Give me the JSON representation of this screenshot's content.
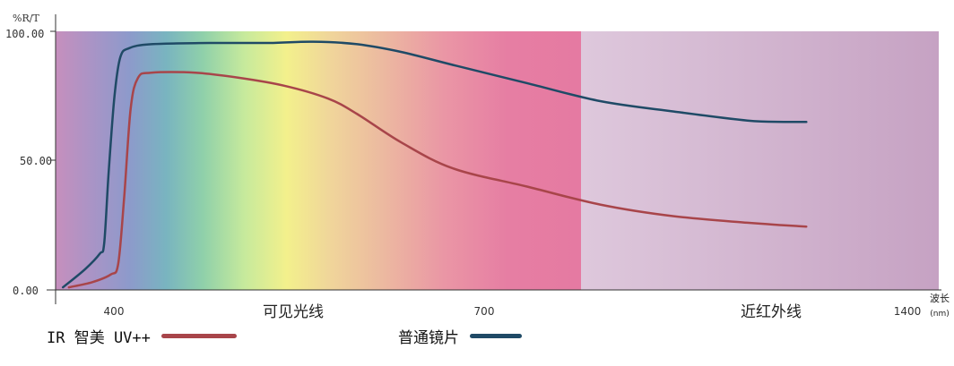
{
  "chart_data": {
    "type": "line",
    "ylabel": "%R/T",
    "xlabel": "波长",
    "xunit": "(nm)",
    "ylim": [
      0,
      100
    ],
    "xlim": [
      310,
      1510
    ],
    "y_ticks": [
      {
        "value": 0,
        "label": "0.00"
      },
      {
        "value": 50,
        "label": "50.00"
      },
      {
        "value": 100,
        "label": "100.00"
      }
    ],
    "x_ticks": [
      {
        "value": 400,
        "label": "400"
      },
      {
        "value": 700,
        "label": "700"
      },
      {
        "value": 1400,
        "label": "1400"
      }
    ],
    "regions": [
      {
        "label": "可见光线",
        "x_start": 380,
        "x_end": 780
      },
      {
        "label": "近红外线",
        "x_start": 780,
        "x_end": 1510
      }
    ],
    "series": [
      {
        "name": "IR 智美 UV++",
        "color": "#a8454a",
        "points": [
          [
            328,
            1
          ],
          [
            360,
            3
          ],
          [
            385,
            6
          ],
          [
            395,
            10
          ],
          [
            403,
            35
          ],
          [
            412,
            70
          ],
          [
            422,
            82
          ],
          [
            440,
            84
          ],
          [
            500,
            84
          ],
          [
            560,
            82
          ],
          [
            620,
            79
          ],
          [
            680,
            74
          ],
          [
            720,
            68
          ],
          [
            780,
            57
          ],
          [
            850,
            47
          ],
          [
            950,
            40
          ],
          [
            1050,
            33
          ],
          [
            1150,
            28.5
          ],
          [
            1250,
            26
          ],
          [
            1300,
            25
          ],
          [
            1330,
            24.5
          ]
        ]
      },
      {
        "name": "普通镜片",
        "color": "#1f4a66",
        "points": [
          [
            320,
            1
          ],
          [
            350,
            8
          ],
          [
            370,
            14
          ],
          [
            376,
            18
          ],
          [
            382,
            45
          ],
          [
            390,
            75
          ],
          [
            398,
            90
          ],
          [
            410,
            93.5
          ],
          [
            440,
            95
          ],
          [
            520,
            95.5
          ],
          [
            600,
            95.5
          ],
          [
            660,
            96
          ],
          [
            720,
            95
          ],
          [
            780,
            92
          ],
          [
            850,
            87
          ],
          [
            950,
            80
          ],
          [
            1050,
            73
          ],
          [
            1150,
            69
          ],
          [
            1250,
            65.5
          ],
          [
            1300,
            65
          ],
          [
            1330,
            65
          ]
        ]
      }
    ]
  }
}
